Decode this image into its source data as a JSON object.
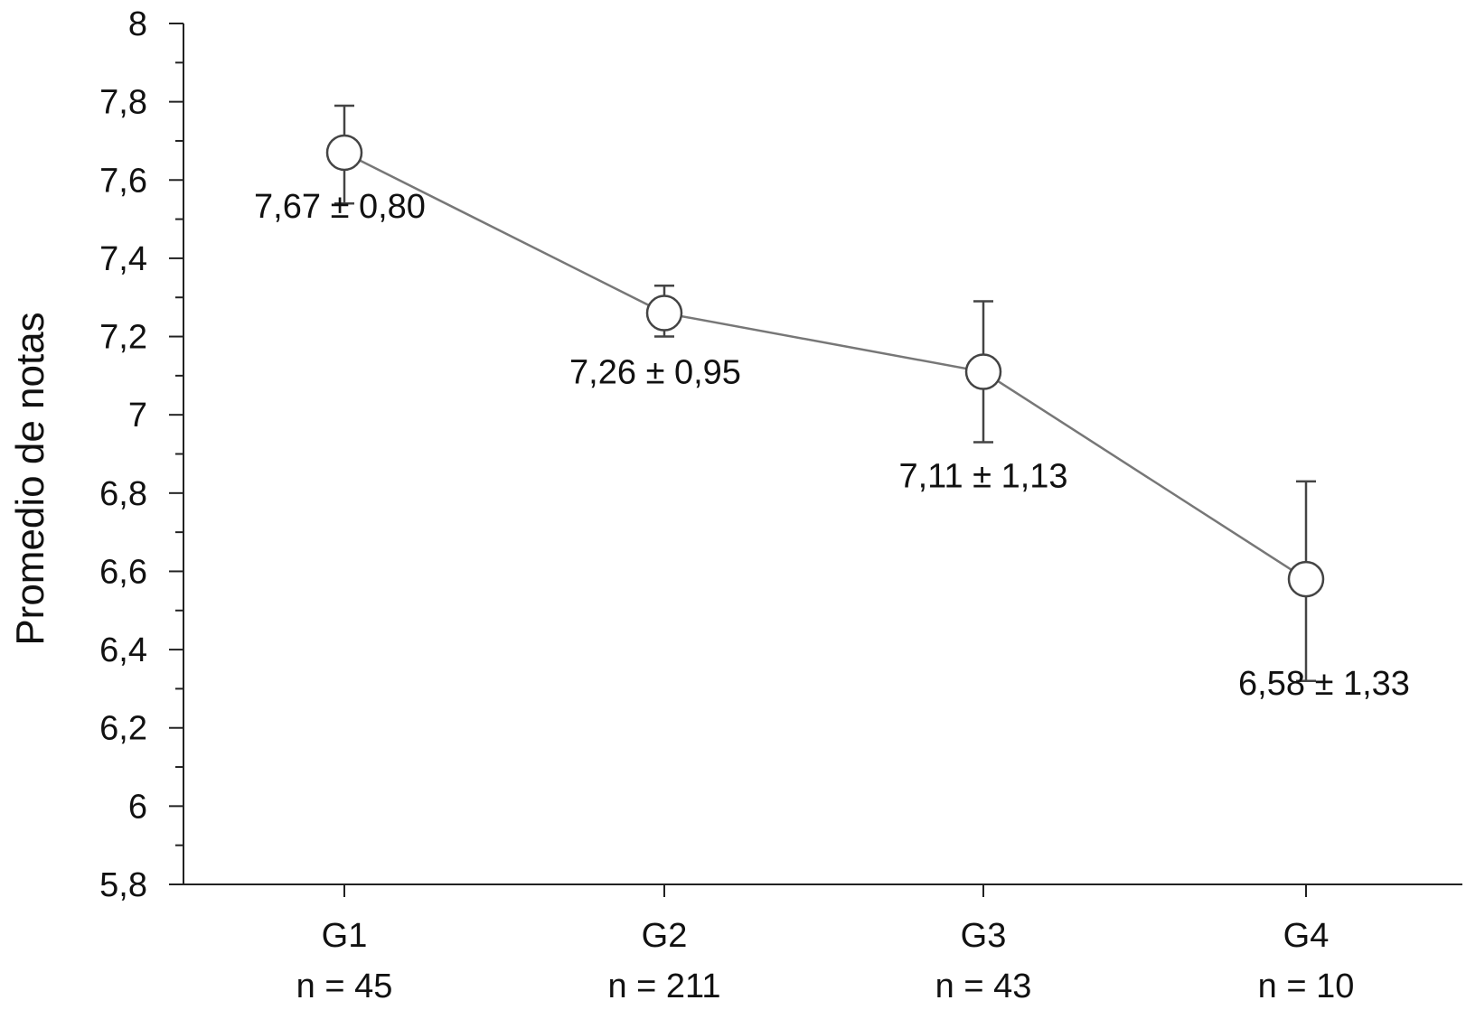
{
  "chart_data": {
    "type": "line",
    "title": "",
    "xlabel": "",
    "ylabel": "Promedio de notas",
    "ylim": [
      5.8,
      8
    ],
    "y_ticks": [
      "8",
      "7,8",
      "7,6",
      "7,4",
      "7,2",
      "7",
      "6,8",
      "6,6",
      "6,4",
      "6,2",
      "6",
      "5,8"
    ],
    "y_tick_values": [
      8,
      7.8,
      7.6,
      7.4,
      7.2,
      7,
      6.8,
      6.6,
      6.4,
      6.2,
      6,
      5.8
    ],
    "y_minor_step": 0.1,
    "categories": [
      "G1",
      "G2",
      "G3",
      "G4"
    ],
    "n_labels": [
      "n = 45",
      "n = 211",
      "n = 43",
      "n = 10"
    ],
    "series": [
      {
        "values": [
          7.67,
          7.26,
          7.11,
          6.58
        ],
        "error_upper": [
          7.79,
          7.33,
          7.29,
          6.83
        ],
        "error_lower": [
          7.54,
          7.2,
          6.93,
          6.32
        ],
        "data_labels": [
          "7,67 ± 0,80",
          "7,26 ± 0,95",
          "7,11 ± 1,13",
          "6,58 ± 1,33"
        ],
        "line_color": "#777777",
        "marker": "open-circle"
      }
    ],
    "grid": false,
    "legend": "none"
  }
}
